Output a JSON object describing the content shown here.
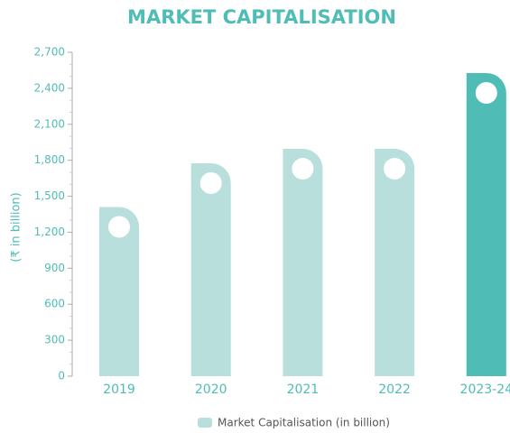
{
  "chart_data": {
    "type": "bar",
    "title": "MARKET CAPITALISATION",
    "y_label": "(₹ in billion)",
    "categories": [
      "2019",
      "2020",
      "2021",
      "2022",
      "2023-24"
    ],
    "series": [
      {
        "name": "Market Capitalisation (in billion)",
        "color": "#b8dfdc",
        "colors": [
          "#b8dfdc",
          "#b8dfdc",
          "#b8dfdc",
          "#b8dfdc",
          "#4fbdb6"
        ],
        "values": [
          1410,
          1775,
          1895,
          1895,
          2527
        ]
      }
    ],
    "ylim": [
      0,
      2700
    ],
    "yticks": [
      0,
      300,
      600,
      900,
      {
        "value": 1200,
        "label": "1,200"
      },
      {
        "value": 1500,
        "label": "1,500"
      },
      {
        "value": 1800,
        "label": "1,800"
      },
      {
        "value": 2100,
        "label": "2,100"
      },
      {
        "value": 2400,
        "label": "2,400"
      },
      {
        "value": 2700,
        "label": "2,700"
      }
    ],
    "legend": "bottom"
  }
}
